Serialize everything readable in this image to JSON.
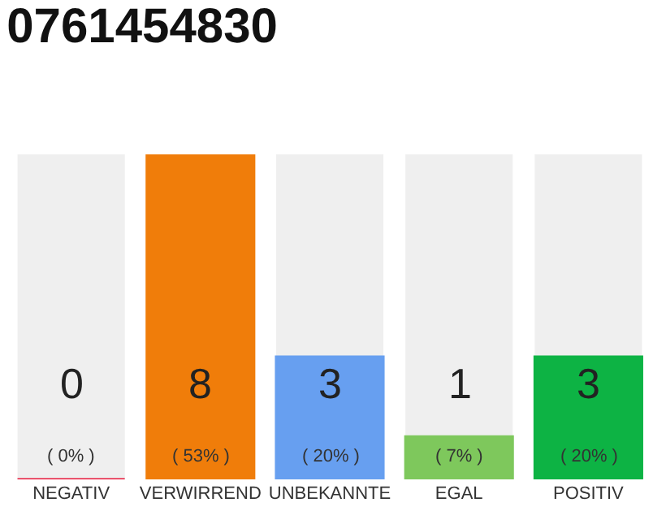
{
  "chart_data": {
    "type": "bar",
    "title": "0761454830",
    "categories": [
      "NEGATIV",
      "VERWIRREND",
      "UNBEKANNTE",
      "EGAL",
      "POSITIV"
    ],
    "values": [
      0,
      53,
      20,
      7,
      20
    ],
    "colors": [
      "#e8173a",
      "#f07d0a",
      "#679ff0",
      "#7ec85c",
      "#0db344"
    ],
    "value_labels": [
      "0\n( 0% )",
      "8\n( 53% )",
      "3\n( 20% )",
      "1\n( 7% )",
      "3\n( 20% )"
    ],
    "ylim": [
      0,
      53
    ],
    "grid": false,
    "legend": false
  }
}
